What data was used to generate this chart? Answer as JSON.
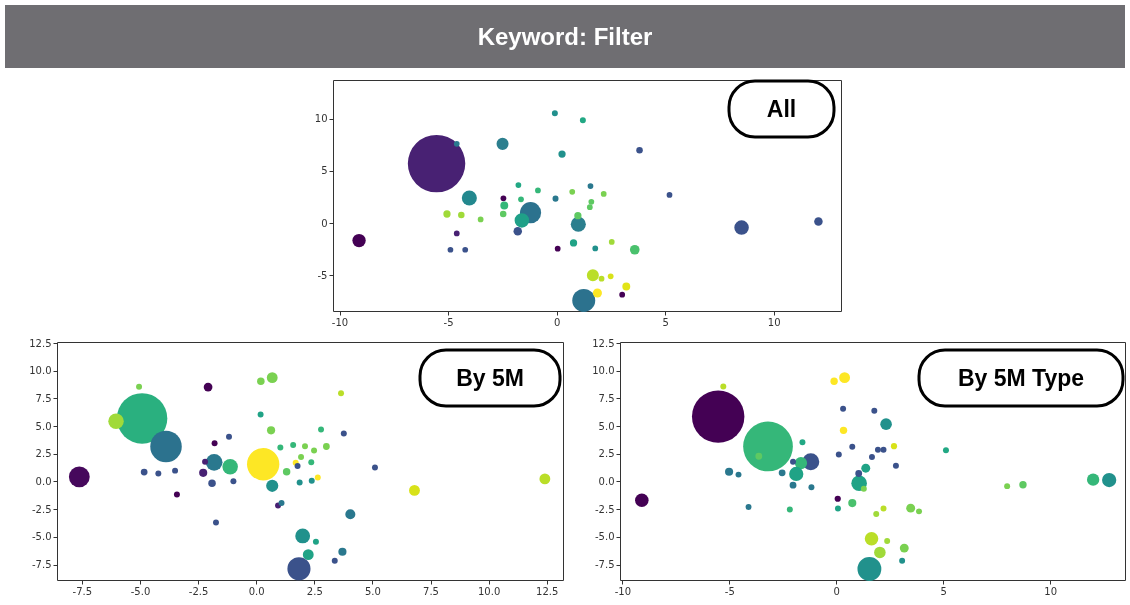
{
  "chart_data": [
    {
      "type": "other",
      "title": "Keyword: Filter"
    },
    {
      "type": "bubble",
      "title": "All",
      "x": [
        -5.53,
        1.25,
        -1.2,
        -1.6,
        1.0,
        0.98,
        -4.6,
        -2.49,
        -0.08,
        1.21,
        0.25,
        3.82,
        5.2,
        -4.02,
        -2.45,
        -2.41,
        -1.76,
        -1.64,
        -0.86,
        -1.79,
        -2.46,
        -5.05,
        -4.39,
        -3.5,
        -4.6,
        -4.89,
        -4.21,
        -9.1,
        -0.05,
        0.72,
        1.56,
        2.17,
        1.6,
        1.53,
        0.78,
        0.05,
        1.78,
        2.54,
        3.6,
        1.67,
        2.07,
        2.49,
        1.88,
        3.21,
        3.02,
        8.52,
        12.06
      ],
      "values": [
        5.7,
        -7.39,
        1.01,
        0.26,
        -0.1,
        0.72,
        7.6,
        7.59,
        10.52,
        9.84,
        6.61,
        6.97,
        2.7,
        2.41,
        2.38,
        1.69,
        3.65,
        2.28,
        3.13,
        -0.78,
        0.88,
        0.88,
        0.78,
        0.36,
        -0.98,
        -2.54,
        -2.54,
        -1.66,
        2.35,
        3.0,
        3.55,
        2.8,
        2.05,
        1.53,
        -1.89,
        -2.44,
        -2.41,
        -1.79,
        -2.54,
        -4.98,
        -5.31,
        -5.08,
        -6.68,
        -6.06,
        -6.84,
        -0.42,
        0.16
      ],
      "sizes": [
        1,
        0.16,
        0.136,
        0.064,
        0.069,
        0.016,
        0.01,
        0.044,
        0.011,
        0.011,
        0.016,
        0.013,
        0.01,
        0.069,
        0.01,
        0.019,
        0.01,
        0.01,
        0.01,
        0.022,
        0.013,
        0.016,
        0.013,
        0.01,
        0.01,
        0.01,
        0.01,
        0.054,
        0.011,
        0.01,
        0.01,
        0.01,
        0.01,
        0.01,
        0.016,
        0.01,
        0.01,
        0.01,
        0.028,
        0.044,
        0.01,
        0.01,
        0.025,
        0.019,
        0.01,
        0.064,
        0.022
      ],
      "colors": [
        "#482173",
        "#2c728e",
        "#2c728e",
        "#1fa088",
        "#2c7f8e",
        "#5ec962",
        "#2a788e",
        "#2c7f8e",
        "#21908d",
        "#22a884",
        "#21918c",
        "#3b528b",
        "#3b528b",
        "#23888e",
        "#440154",
        "#35b779",
        "#22a884",
        "#35b779",
        "#35b779",
        "#3b528b",
        "#5ec962",
        "#a0da39",
        "#a0da39",
        "#7ad151",
        "#482173",
        "#3b528b",
        "#3b528b",
        "#440154",
        "#2a788e",
        "#7ad151",
        "#2a788e",
        "#7ad151",
        "#5ec962",
        "#5ec962",
        "#20a386",
        "#440154",
        "#21918c",
        "#a0da39",
        "#4ac16d",
        "#bade28",
        "#bade28",
        "#d8e219",
        "#fde725",
        "#e2e418",
        "#440154",
        "#3b528b",
        "#3b528b"
      ],
      "xlim": [
        -10.3,
        13.1
      ],
      "ylim": [
        -8.4,
        13.7
      ],
      "xticks": [
        -10,
        -5,
        0,
        5,
        10
      ],
      "yticks": [
        -5,
        0,
        5,
        10
      ]
    },
    {
      "type": "bubble",
      "title": "By 5M",
      "x": [
        -4.91,
        -3.88,
        -6.03,
        -5.04,
        -7.61,
        -2.07,
        0.2,
        0.69,
        3.65,
        0.19,
        0.64,
        -1.17,
        -1.79,
        -1.81,
        -2.2,
        -1.12,
        0.3,
        -2.28,
        -1.9,
        -0.98,
        -4.82,
        -4.21,
        -3.49,
        -3.41,
        -1.73,
        0.69,
        0.94,
        1.09,
        1.04,
        1.59,
        2.1,
        2.49,
        2.79,
        3.02,
        3.77,
        1.93,
        2.37,
        1.7,
        1.78,
        1.31,
        1.87,
        2.39,
        2.65,
        5.11,
        6.81,
        12.42,
        4.05,
        2.0,
        2.57,
        2.24,
        3.71,
        3.38,
        1.84
      ],
      "values": [
        5.7,
        3.16,
        5.44,
        8.56,
        0.42,
        8.53,
        9.05,
        9.38,
        7.98,
        6.05,
        4.62,
        4.04,
        3.45,
        1.73,
        1.79,
        1.33,
        1.56,
        0.78,
        -0.16,
        0.03,
        0.85,
        0.72,
        0.98,
        -1.17,
        -3.71,
        -0.39,
        -2.18,
        -1.95,
        3.06,
        3.29,
        3.19,
        2.8,
        4.69,
        3.16,
        4.33,
        2.21,
        1.73,
        1.69,
        1.4,
        0.88,
        -0.1,
        0.07,
        0.36,
        1.27,
        -0.81,
        0.23,
        -2.96,
        -4.92,
        -5.44,
        -6.61,
        -6.35,
        -7.16,
        -7.88
      ],
      "sizes": [
        1,
        0.39,
        0.094,
        0.014,
        0.17,
        0.03,
        0.022,
        0.046,
        0.014,
        0.014,
        0.026,
        0.014,
        0.014,
        0.11,
        0.014,
        0.094,
        0.41,
        0.026,
        0.022,
        0.014,
        0.018,
        0.014,
        0.014,
        0.014,
        0.014,
        0.058,
        0.014,
        0.014,
        0.014,
        0.014,
        0.014,
        0.014,
        0.014,
        0.018,
        0.014,
        0.014,
        0.014,
        0.014,
        0.014,
        0.022,
        0.014,
        0.014,
        0.014,
        0.014,
        0.046,
        0.046,
        0.04,
        0.086,
        0.014,
        0.046,
        0.026,
        0.014,
        0.21
      ],
      "colors": [
        "#2ab07f",
        "#2c728e",
        "#a0da39",
        "#7ad151",
        "#46085c",
        "#440154",
        "#7ad151",
        "#7ad151",
        "#bade28",
        "#20a386",
        "#7ad151",
        "#3b528b",
        "#440154",
        "#2a788e",
        "#482173",
        "#35b779",
        "#fde725",
        "#482173",
        "#3b528b",
        "#3b528b",
        "#3b528b",
        "#3b528b",
        "#3b528b",
        "#440154",
        "#3b528b",
        "#21918c",
        "#482173",
        "#2a788e",
        "#35b779",
        "#35b779",
        "#7ad151",
        "#7ad151",
        "#35b779",
        "#7ad151",
        "#3b528b",
        "#7ad151",
        "#35b779",
        "#fde725",
        "#3b528b",
        "#5ec962",
        "#21918c",
        "#21918c",
        "#fde725",
        "#3b528b",
        "#d8e219",
        "#bade28",
        "#2a788e",
        "#21918c",
        "#20a386",
        "#20a386",
        "#2a788e",
        "#3b528b",
        "#3b528b"
      ],
      "xlim": [
        -8.57,
        13.2
      ],
      "ylim": [
        -8.9,
        12.6
      ],
      "xticks": [
        -7.5,
        {
          "value": -5,
          "label": "-5.0"
        },
        -2.5,
        {
          "value": 0,
          "label": "0.0"
        },
        2.5,
        {
          "value": 5,
          "label": "5.0"
        },
        7.5,
        {
          "value": 10,
          "label": "10.0"
        },
        12.5
      ],
      "yticks": [
        -7.5,
        {
          "value": -5,
          "label": "-5.0"
        },
        -2.5,
        {
          "value": 0,
          "label": "0.0"
        },
        2.5,
        {
          "value": 5,
          "label": "5.0"
        },
        7.5,
        {
          "value": 10,
          "label": "10.0"
        },
        12.5
      ]
    },
    {
      "type": "bubble",
      "title": "By 5M Type",
      "x": [
        -5.52,
        -3.19,
        -3.62,
        -5.28,
        -9.09,
        -0.1,
        0.39,
        0.34,
        0.32,
        1.78,
        2.33,
        -1.58,
        -1.19,
        -1.65,
        -1.87,
        -2.02,
        -2.53,
        -2.02,
        -1.16,
        -5.01,
        -4.57,
        -4.1,
        -2.17,
        0.12,
        0.75,
        1.67,
        1.95,
        2.21,
        2.7,
        2.79,
        1.07,
        1.05,
        1.38,
        1.29,
        0.07,
        0.08,
        0.75,
        1.87,
        2.21,
        3.48,
        3.87,
        5.13,
        7.99,
        8.73,
        12.01,
        12.76,
        1.55,
        1.65,
        2.38,
        2.04,
        3.18,
        3.08
      ],
      "values": [
        5.86,
        3.16,
        2.28,
        8.59,
        -1.69,
        9.05,
        9.38,
        4.62,
        6.58,
        6.38,
        5.18,
        3.55,
        1.79,
        1.66,
        0.68,
        1.79,
        0.78,
        -0.33,
        -0.52,
        0.88,
        0.62,
        -2.31,
        -2.54,
        2.44,
        3.13,
        2.21,
        2.86,
        2.86,
        3.19,
        1.43,
        -0.16,
        0.72,
        1.2,
        -0.65,
        -1.56,
        -2.44,
        -1.95,
        -2.93,
        -2.44,
        -2.41,
        -2.7,
        2.83,
        -0.42,
        -0.29,
        0.16,
        0.13,
        -7.91,
        -5.18,
        -5.37,
        -6.41,
        -6.02,
        -7.16
      ],
      "sizes": [
        1,
        0.9,
        0.017,
        0.013,
        0.067,
        0.02,
        0.043,
        0.02,
        0.013,
        0.013,
        0.049,
        0.013,
        0.105,
        0.055,
        0.074,
        0.013,
        0.017,
        0.017,
        0.013,
        0.024,
        0.013,
        0.013,
        0.013,
        0.013,
        0.013,
        0.013,
        0.013,
        0.013,
        0.014,
        0.013,
        0.089,
        0.017,
        0.029,
        0.013,
        0.014,
        0.013,
        0.024,
        0.013,
        0.013,
        0.029,
        0.013,
        0.013,
        0.013,
        0.02,
        0.055,
        0.074,
        0.207,
        0.067,
        0.013,
        0.049,
        0.029,
        0.013
      ],
      "colors": [
        "#440154",
        "#35b779",
        "#5ec962",
        "#bade28",
        "#440154",
        "#fde725",
        "#fde725",
        "#fde725",
        "#3b528b",
        "#3b528b",
        "#21918c",
        "#22a884",
        "#3b528b",
        "#35b779",
        "#20a386",
        "#3b528b",
        "#2a788e",
        "#2a788e",
        "#2a788e",
        "#2a788e",
        "#2a788e",
        "#2a788e",
        "#35b779",
        "#3b528b",
        "#3b528b",
        "#3b528b",
        "#3b528b",
        "#3b528b",
        "#d8e219",
        "#3b528b",
        "#20a386",
        "#3b528b",
        "#20a386",
        "#7ad151",
        "#440154",
        "#20a386",
        "#4ac16d",
        "#a0da39",
        "#bade28",
        "#7ad151",
        "#7ad151",
        "#22a884",
        "#7ad151",
        "#5ec962",
        "#35b779",
        "#21918c",
        "#21918c",
        "#bade28",
        "#a0da39",
        "#a0da39",
        "#7ad151",
        "#21918c"
      ],
      "xlim": [
        -10.11,
        13.5
      ],
      "ylim": [
        -8.9,
        12.6
      ],
      "xticks": [
        -10,
        -5,
        0,
        5,
        10
      ],
      "yticks": [
        -7.5,
        {
          "value": -5,
          "label": "-5.0"
        },
        -2.5,
        {
          "value": 0,
          "label": "0.0"
        },
        2.5,
        {
          "value": 5,
          "label": "5.0"
        },
        7.5,
        {
          "value": 10,
          "label": "10.0"
        },
        12.5
      ]
    }
  ]
}
